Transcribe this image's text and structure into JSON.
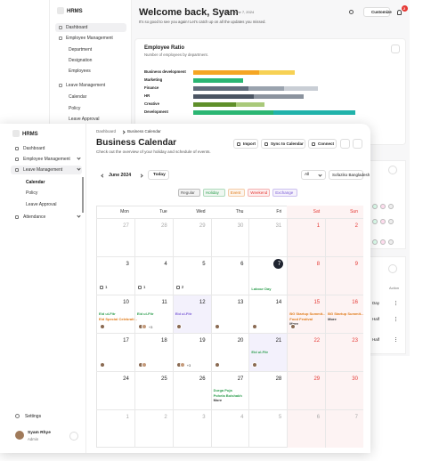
{
  "back": {
    "sidebar": {
      "logo": "HRMS",
      "items": [
        "Dashboard",
        "Employee Management",
        "Department",
        "Designation",
        "Employees",
        "Leave Management",
        "Calendar",
        "Policy",
        "Leave Approval"
      ]
    },
    "header": {
      "title": "Welcome back, Syam",
      "date": "Friday, June 7, 2024",
      "subtitle": "It's so good to see you again! Let's catch up on all the updates you missed.",
      "button": "Customize",
      "notifications": 2
    },
    "employee_ratio": {
      "title": "Employee Ratio",
      "subtitle": "Number of employees by department.",
      "rows": [
        {
          "label": "Business development",
          "segments": [
            {
              "color": "#f5a623",
              "value": 37
            },
            {
              "color": "#f7d154",
              "value": 20
            }
          ]
        },
        {
          "label": "Marketing",
          "segments": [
            {
              "color": "#2bb673",
              "value": 28
            }
          ]
        },
        {
          "label": "Finance",
          "segments": [
            {
              "color": "#5f6b7a",
              "value": 31
            },
            {
              "color": "#9aa3ae",
              "value": 20
            },
            {
              "color": "#c9ced5",
              "value": 19
            }
          ]
        },
        {
          "label": "HR",
          "segments": [
            {
              "color": "#4b5563",
              "value": 34
            },
            {
              "color": "#8b939e",
              "value": 28
            }
          ]
        },
        {
          "label": "Creative",
          "segments": [
            {
              "color": "#5f8f2a",
              "value": 24
            },
            {
              "color": "#a9c97a",
              "value": 16
            }
          ]
        },
        {
          "label": "Development",
          "segments": [
            {
              "color": "#2bb673",
              "value": 45
            },
            {
              "color": "#20b2aa",
              "value": 46
            }
          ]
        }
      ]
    },
    "table": {
      "headers": [
        "tion",
        "Action"
      ],
      "cells": [
        "Day",
        "Half",
        "Half"
      ]
    }
  },
  "front": {
    "sidebar": {
      "logo": "HRMS",
      "items": [
        "Dashboard",
        "Employee Management",
        "Leave Management",
        "Calendar",
        "Policy",
        "Leave Approval",
        "Attendance"
      ],
      "settings": "Settings",
      "user": {
        "name": "Syam Rhye",
        "role": "Admin"
      }
    },
    "breadcrumb": [
      "Dashboard",
      "Business Calendar"
    ],
    "title": "Business Calendar",
    "subtitle": "Check out the overview of your holiday and schedule of events.",
    "buttons": [
      "Import",
      "Sync to Calendar",
      "Connect"
    ],
    "month": "June 2024",
    "today": "Today",
    "filter": "All",
    "location": "Sofaziko Bangladesh",
    "legend": [
      {
        "text": "Regular",
        "color": "#555555"
      },
      {
        "text": "Holiday",
        "color": "#2e9e4f"
      },
      {
        "text": "Event",
        "color": "#e07b1a"
      },
      {
        "text": "Weekend",
        "color": "#e53935"
      },
      {
        "text": "Exchange",
        "color": "#7b5cd6"
      }
    ],
    "weekdays": [
      "Mon",
      "Tue",
      "Wed",
      "Thu",
      "Fri",
      "Sat",
      "Sun"
    ],
    "weeks": [
      [
        {
          "day": 27,
          "muted": true
        },
        {
          "day": 28,
          "muted": true
        },
        {
          "day": 29,
          "muted": true
        },
        {
          "day": 30,
          "muted": true
        },
        {
          "day": 31,
          "muted": true
        },
        {
          "day": 1
        },
        {
          "day": 2
        }
      ],
      [
        {
          "day": 3,
          "count": 1
        },
        {
          "day": 4,
          "count": 1
        },
        {
          "day": 5,
          "count": 2
        },
        {
          "day": 6
        },
        {
          "day": 7,
          "today": true,
          "events": [
            {
              "text": "Labour Day",
              "kind": "holiday"
            }
          ]
        },
        {
          "day": 8
        },
        {
          "day": 9
        }
      ],
      [
        {
          "day": 10,
          "events": [
            {
              "text": "Eid ul-Fitr",
              "kind": "holiday"
            },
            {
              "text": "Eid Special Celebrati...",
              "kind": "event"
            }
          ],
          "avatars": 1
        },
        {
          "day": 11,
          "events": [
            {
              "text": "Eid ul-Fitr",
              "kind": "holiday"
            }
          ],
          "avatars": 2,
          "more": "+3"
        },
        {
          "day": 12,
          "exchange": true,
          "events": [
            {
              "text": "Eid ul-Fitr",
              "kind": "exchange"
            }
          ],
          "avatars": 1
        },
        {
          "day": 13,
          "avatars": 1
        },
        {
          "day": 14,
          "avatars": 1
        },
        {
          "day": 15,
          "events": [
            {
              "text": "BG Startup Summit...",
              "kind": "event"
            },
            {
              "text": "Food Festival",
              "kind": "event"
            },
            {
              "text": "More",
              "kind": "more"
            }
          ],
          "avatars": 1
        },
        {
          "day": 16,
          "events": [
            {
              "text": "BG Startup Summit...",
              "kind": "event"
            },
            {
              "text": "More",
              "kind": "more"
            }
          ]
        }
      ],
      [
        {
          "day": 17,
          "avatars": 1
        },
        {
          "day": 18,
          "avatars": 2
        },
        {
          "day": 19,
          "avatars": 2,
          "more": "+3"
        },
        {
          "day": 20,
          "avatars": 1
        },
        {
          "day": 21,
          "exchange": true,
          "events": [
            {
              "text": "Eid ul-Fitr",
              "kind": "holiday"
            }
          ],
          "avatars": 1
        },
        {
          "day": 22
        },
        {
          "day": 23
        }
      ],
      [
        {
          "day": 24
        },
        {
          "day": 25
        },
        {
          "day": 26
        },
        {
          "day": 27,
          "events": [
            {
              "text": "Durga Puja",
              "kind": "holiday"
            },
            {
              "text": "Pohela Boishakh",
              "kind": "holiday"
            },
            {
              "text": "More",
              "kind": "more"
            }
          ]
        },
        {
          "day": 28
        },
        {
          "day": 29
        },
        {
          "day": 30
        }
      ],
      [
        {
          "day": 1,
          "muted": true
        },
        {
          "day": 2,
          "muted": true
        },
        {
          "day": 3,
          "muted": true
        },
        {
          "day": 4,
          "muted": true
        },
        {
          "day": 5,
          "muted": true
        },
        {
          "day": 6,
          "muted": true
        },
        {
          "day": 7,
          "muted": true
        }
      ]
    ]
  }
}
